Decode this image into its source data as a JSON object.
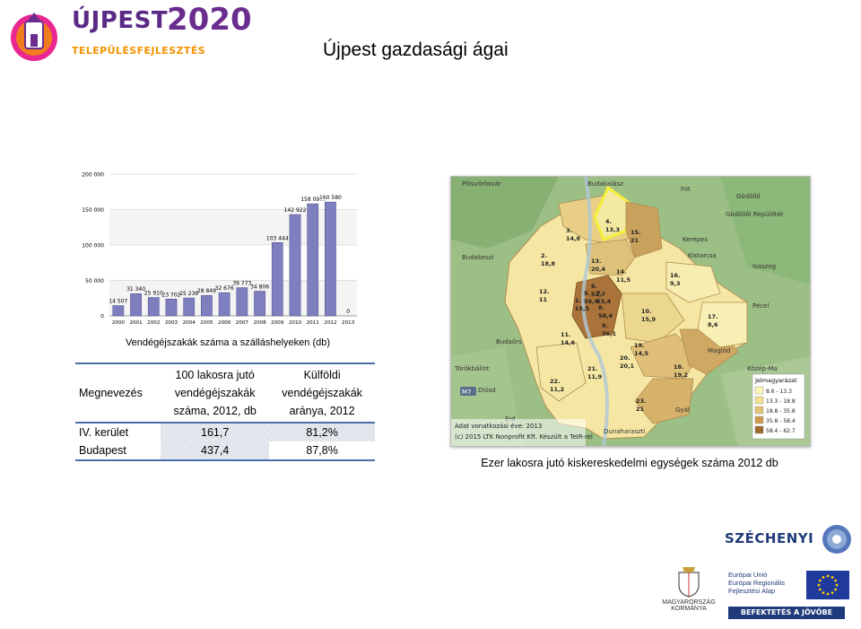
{
  "header": {
    "logo_word1": "ÚJPEST",
    "logo_word2": "2020",
    "logo_subtitle": "TELEPÜLÉSFEJLESZTÉS",
    "page_title": "Újpest gazdasági ágai"
  },
  "chart_data": {
    "type": "bar",
    "title": "",
    "caption": "Vendégéjszakák száma a szálláshelyeken (db)",
    "xlabel": "",
    "ylabel": "",
    "categories": [
      "2000",
      "2001",
      "2002",
      "2003",
      "2004",
      "2005",
      "2006",
      "2007",
      "2008",
      "2009",
      "2010",
      "2011",
      "2012",
      "2013"
    ],
    "values": [
      14507,
      31340,
      25910,
      23702,
      25236,
      28849,
      32676,
      39773,
      34806,
      103444,
      142922,
      158091,
      160580,
      0
    ],
    "value_labels": [
      "14 507",
      "31 340",
      "25 910",
      "23 702",
      "25 236",
      "28 849",
      "32 676",
      "39 773",
      "34 806",
      "103 444",
      "142 922",
      "158 09…",
      "160 580",
      "0"
    ],
    "yticks": [
      "0",
      "50 000",
      "100 000",
      "150 000",
      "200 000"
    ],
    "ylim": [
      0,
      200000
    ],
    "bar_color": "#7f7fc0",
    "grid": true
  },
  "table": {
    "headers": [
      "Megnevezés",
      "100 lakosra jutó vendégéjszakák száma, 2012, db",
      "Külföldi vendégéjszakák aránya, 2012"
    ],
    "header_lines": {
      "col1": [
        "100 lakosra jutó",
        "vendégéjszakák",
        "száma, 2012, db"
      ],
      "col2": [
        "Külföldi",
        "vendégéjszakák",
        "aránya, 2012"
      ]
    },
    "rows": [
      [
        "IV. kerület",
        "161,7",
        "81,2%"
      ],
      [
        "Budapest",
        "437,4",
        "87,8%"
      ]
    ]
  },
  "map": {
    "caption": "Ezer lakosra jutó kiskereskedelmi egységek száma 2012 db",
    "places": [
      "Pilisvörösvár",
      "Budakalász",
      "Fót",
      "Gödöllő",
      "Gödöllői Repülőtér",
      "Kerepes",
      "Kistarcsa",
      "Isaszeg",
      "Budakeszi",
      "Pécel",
      "Budaörs",
      "Törökbálint",
      "Maglód",
      "Diósd",
      "Érd",
      "Gyál",
      "Dunaharaszti",
      "Közép-Ma"
    ],
    "districts": [
      {
        "label": "1.",
        "value": "15,5"
      },
      {
        "label": "2.",
        "value": "18,8"
      },
      {
        "label": "3.",
        "value": "14,8"
      },
      {
        "label": "4.",
        "value": "13,3"
      },
      {
        "label": "5.",
        "value": "59,4"
      },
      {
        "label": "6.",
        "value": "52,7"
      },
      {
        "label": "7.",
        "value": "53,4"
      },
      {
        "label": "8.",
        "value": "58,4"
      },
      {
        "label": "9.",
        "value": "36,1"
      },
      {
        "label": "10.",
        "value": "15,9"
      },
      {
        "label": "11.",
        "value": "14,6"
      },
      {
        "label": "12.",
        "value": "11"
      },
      {
        "label": "13.",
        "value": "20,4"
      },
      {
        "label": "14.",
        "value": "11,5"
      },
      {
        "label": "15.",
        "value": "21"
      },
      {
        "label": "16.",
        "value": "9,3"
      },
      {
        "label": "17.",
        "value": "8,6"
      },
      {
        "label": "18.",
        "value": "19,2"
      },
      {
        "label": "19.",
        "value": "14,5"
      },
      {
        "label": "20.",
        "value": "20,1"
      },
      {
        "label": "21.",
        "value": "11,9"
      },
      {
        "label": "22.",
        "value": "11,2"
      },
      {
        "label": "23.",
        "value": "21"
      }
    ],
    "legend_title": "Jelmagyarázat",
    "legend": [
      {
        "label": "8.6 - 13.3",
        "color": "#fbf3b8"
      },
      {
        "label": "13.3 - 18.8",
        "color": "#f2e08c"
      },
      {
        "label": "18.8 - 35.8",
        "color": "#e3c274"
      },
      {
        "label": "35.8 - 58.4",
        "color": "#cc9a4e"
      },
      {
        "label": "58.4 - 62.7",
        "color": "#9e6a2c"
      }
    ],
    "footer_line1": "Adat vonatkozási éve: 2013",
    "footer_line2": "(c) 2015 LTK Nonprofit Kft. Készült a TeIR-rel",
    "road_label": "M7"
  },
  "footer": {
    "szechenyi": "SZÉCHENYI",
    "gov_line1": "MAGYARORSZÁG",
    "gov_line2": "KORMÁNYA",
    "eu_lines": [
      "Európai Unió",
      "Európai Regionális",
      "Fejlesztési Alap"
    ],
    "eu_banner": "BEFEKTETÉS A JÖVŐBE"
  }
}
